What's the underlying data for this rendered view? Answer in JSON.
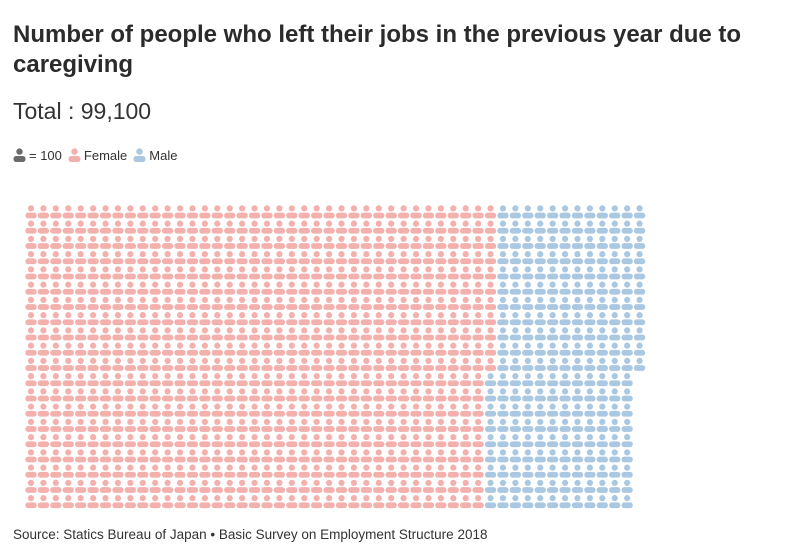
{
  "chart_data": {
    "type": "waffle",
    "title": "Number of people who left their jobs in the previous year due to caregiving",
    "subtitle": "Total : 99,100",
    "unit_label": "= 100",
    "unit_value": 100,
    "total": 99100,
    "series": [
      {
        "name": "Female",
        "value": 75100,
        "color": "#f4b0ad"
      },
      {
        "name": "Male",
        "value": 24000,
        "color": "#abc8e2"
      }
    ],
    "unit_icon_color": "#6b6b6b",
    "fill_order": "column-major, top-to-bottom, left-to-right",
    "rows": 20,
    "source": "Source: Statics Bureau of Japan • Basic Survey on Employment Structure 2018"
  }
}
